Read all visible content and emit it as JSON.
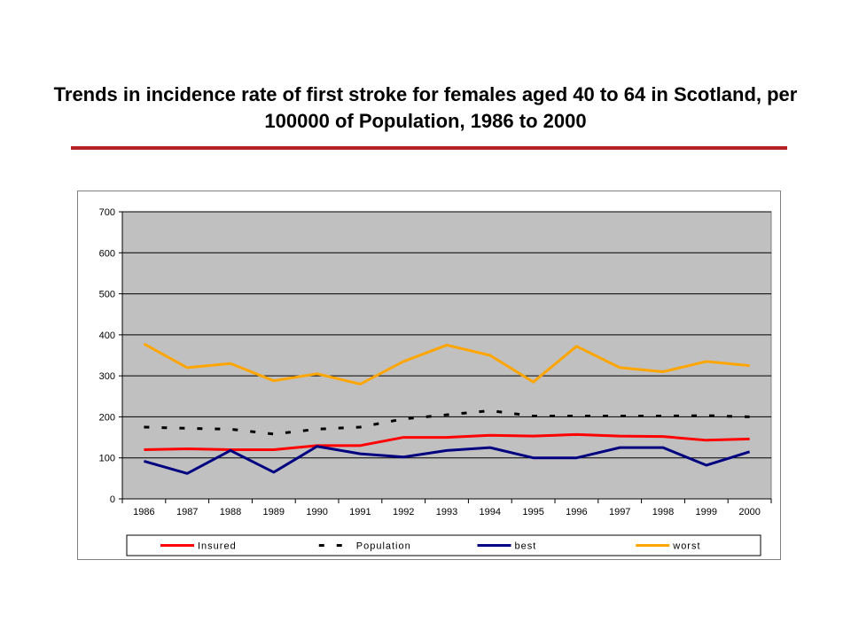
{
  "slide": {
    "title": "Trends in incidence rate of first stroke for females aged 40 to 64 in Scotland,  per 100000 of Population, 1986 to 2000",
    "rule_color": "#b22222"
  },
  "chart_data": {
    "type": "line",
    "title": "",
    "xlabel": "",
    "ylabel": "",
    "categories": [
      "1986",
      "1987",
      "1988",
      "1989",
      "1990",
      "1991",
      "1992",
      "1993",
      "1994",
      "1995",
      "1996",
      "1997",
      "1998",
      "1999",
      "2000"
    ],
    "ylim": [
      0,
      700
    ],
    "yticks": [
      0,
      100,
      200,
      300,
      400,
      500,
      600,
      700
    ],
    "grid": true,
    "plot_background": "#c0c0c0",
    "legend_position": "bottom",
    "series": [
      {
        "name": "Insured",
        "color": "#ff0000",
        "style": "solid",
        "values": [
          120,
          122,
          120,
          120,
          130,
          130,
          150,
          150,
          155,
          153,
          157,
          153,
          152,
          143,
          146
        ]
      },
      {
        "name": "Population",
        "color": "#000000",
        "style": "dashed",
        "values": [
          175,
          172,
          170,
          158,
          170,
          175,
          195,
          205,
          215,
          202,
          202,
          202,
          202,
          203,
          200
        ]
      },
      {
        "name": "best",
        "color": "#000080",
        "style": "solid",
        "values": [
          92,
          62,
          118,
          65,
          128,
          110,
          102,
          118,
          125,
          100,
          100,
          125,
          125,
          82,
          115
        ]
      },
      {
        "name": "worst",
        "color": "#ffa500",
        "style": "solid",
        "values": [
          378,
          320,
          330,
          288,
          305,
          280,
          335,
          375,
          350,
          285,
          372,
          320,
          310,
          335,
          325
        ]
      }
    ]
  }
}
